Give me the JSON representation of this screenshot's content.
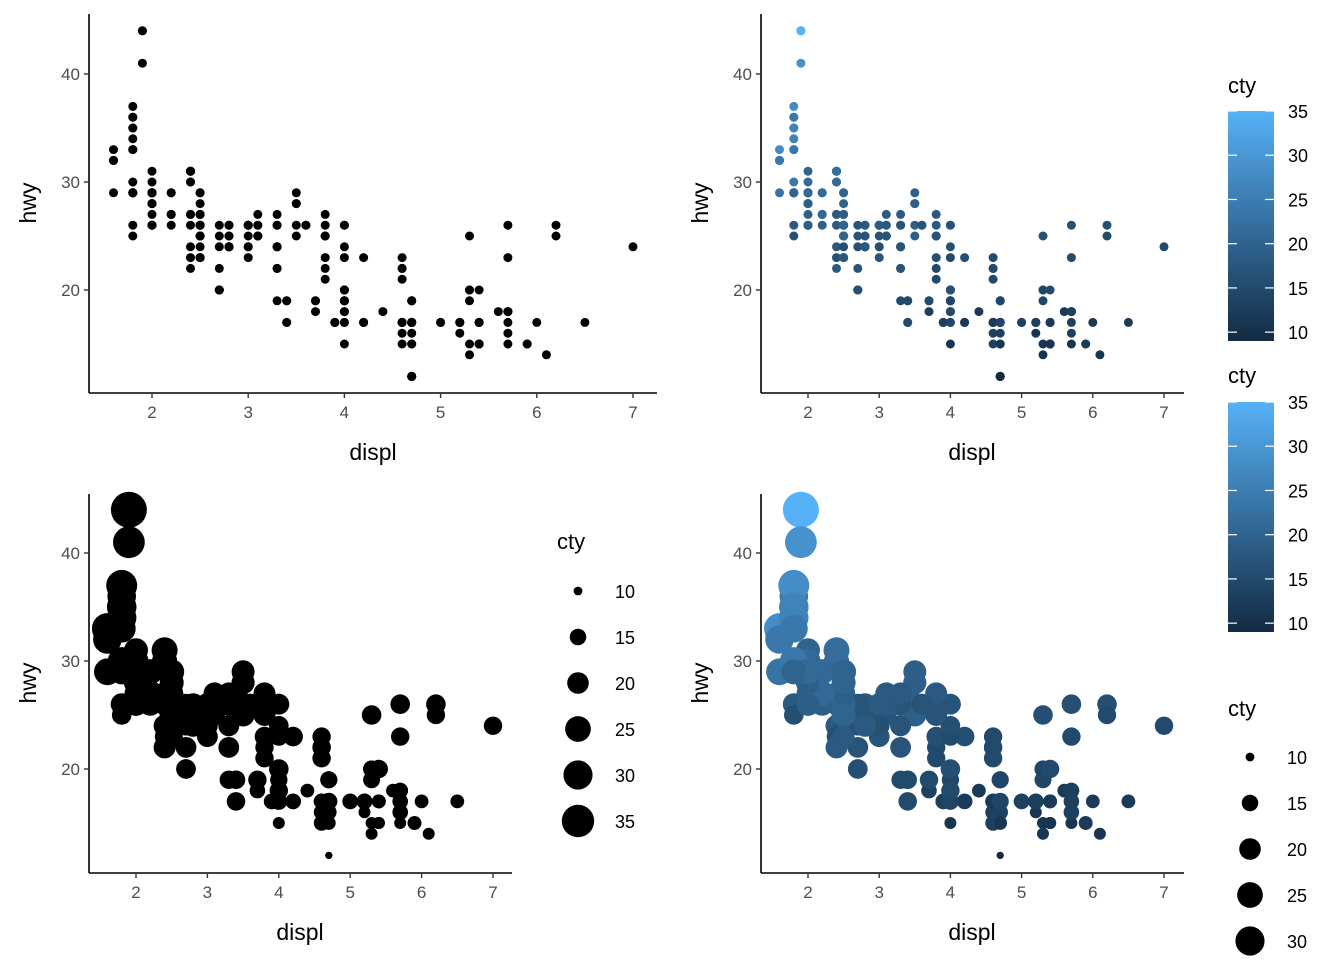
{
  "chart_data": [
    {
      "type": "scatter",
      "panel": "top-left",
      "title": "",
      "xlabel": "displ",
      "ylabel": "hwy",
      "xlim": [
        1.36,
        7.24
      ],
      "ylim": [
        10.4,
        45.6
      ],
      "xticks": [
        2,
        3,
        4,
        5,
        6,
        7
      ],
      "yticks": [
        20,
        30,
        40
      ],
      "xtick_labels": [
        "2",
        "3",
        "4",
        "5",
        "6",
        "7"
      ],
      "ytick_labels": [
        "20",
        "30",
        "40"
      ],
      "color_mapping": "none",
      "size_mapping": "none",
      "point_color": "#000000",
      "legend": null
    },
    {
      "type": "scatter",
      "panel": "top-right",
      "title": "",
      "xlabel": "displ",
      "ylabel": "hwy",
      "xlim": [
        1.36,
        7.24
      ],
      "ylim": [
        10.4,
        45.6
      ],
      "xticks": [
        2,
        3,
        4,
        5,
        6,
        7
      ],
      "yticks": [
        20,
        30,
        40
      ],
      "xtick_labels": [
        "2",
        "3",
        "4",
        "5",
        "6",
        "7"
      ],
      "ytick_labels": [
        "20",
        "30",
        "40"
      ],
      "color_mapping": "cty",
      "size_mapping": "none",
      "legend": {
        "title": "cty",
        "type": "colorbar",
        "placement": "right",
        "range": [
          9,
          35
        ],
        "breaks": [
          35,
          30,
          25,
          20,
          15,
          10
        ],
        "labels": [
          "35",
          "30",
          "25",
          "20",
          "15",
          "10"
        ],
        "low_color": "#132B43",
        "high_color": "#56B1F7"
      }
    },
    {
      "type": "scatter",
      "panel": "bottom-left",
      "title": "",
      "xlabel": "displ",
      "ylabel": "hwy",
      "xlim": [
        1.36,
        7.24
      ],
      "ylim": [
        10.4,
        45.6
      ],
      "xticks": [
        2,
        3,
        4,
        5,
        6,
        7
      ],
      "yticks": [
        20,
        30,
        40
      ],
      "xtick_labels": [
        "2",
        "3",
        "4",
        "5",
        "6",
        "7"
      ],
      "ytick_labels": [
        "20",
        "30",
        "40"
      ],
      "color_mapping": "none",
      "size_mapping": "cty",
      "point_color": "#000000",
      "legend": {
        "title": "cty",
        "type": "size",
        "placement": "right",
        "breaks": [
          10,
          15,
          20,
          25,
          30,
          35
        ],
        "labels": [
          "10",
          "15",
          "20",
          "25",
          "30",
          "35"
        ]
      }
    },
    {
      "type": "scatter",
      "panel": "bottom-right",
      "title": "",
      "xlabel": "displ",
      "ylabel": "hwy",
      "xlim": [
        1.36,
        7.24
      ],
      "ylim": [
        10.4,
        45.6
      ],
      "xticks": [
        2,
        3,
        4,
        5,
        6,
        7
      ],
      "yticks": [
        20,
        30,
        40
      ],
      "xtick_labels": [
        "2",
        "3",
        "4",
        "5",
        "6",
        "7"
      ],
      "ytick_labels": [
        "20",
        "30",
        "40"
      ],
      "color_mapping": "cty",
      "size_mapping": "cty",
      "legends": [
        {
          "title": "cty",
          "type": "colorbar",
          "placement": "right",
          "range": [
            9,
            35
          ],
          "breaks": [
            35,
            30,
            25,
            20,
            15,
            10
          ],
          "labels": [
            "35",
            "30",
            "25",
            "20",
            "15",
            "10"
          ],
          "low_color": "#132B43",
          "high_color": "#56B1F7"
        },
        {
          "title": "cty",
          "type": "size",
          "placement": "right",
          "breaks": [
            10,
            15,
            20,
            25,
            30
          ],
          "labels": [
            "10",
            "15",
            "20",
            "25",
            "30"
          ]
        }
      ]
    }
  ],
  "points": {
    "fields": [
      "displ",
      "hwy",
      "cty"
    ],
    "rows": [
      [
        1.8,
        29,
        18
      ],
      [
        1.8,
        29,
        21
      ],
      [
        2.0,
        31,
        20
      ],
      [
        2.0,
        30,
        21
      ],
      [
        2.8,
        26,
        16
      ],
      [
        2.8,
        26,
        18
      ],
      [
        3.1,
        27,
        18
      ],
      [
        1.8,
        26,
        18
      ],
      [
        1.8,
        25,
        16
      ],
      [
        2.0,
        28,
        20
      ],
      [
        2.0,
        27,
        19
      ],
      [
        2.8,
        25,
        15
      ],
      [
        2.8,
        25,
        17
      ],
      [
        3.1,
        25,
        17
      ],
      [
        3.1,
        25,
        15
      ],
      [
        2.8,
        24,
        15
      ],
      [
        3.1,
        25,
        17
      ],
      [
        4.2,
        23,
        16
      ],
      [
        5.3,
        20,
        14
      ],
      [
        5.3,
        15,
        11
      ],
      [
        5.3,
        20,
        14
      ],
      [
        5.7,
        17,
        13
      ],
      [
        6.0,
        17,
        12
      ],
      [
        5.7,
        26,
        16
      ],
      [
        5.7,
        23,
        15
      ],
      [
        6.2,
        26,
        16
      ],
      [
        6.2,
        25,
        15
      ],
      [
        7.0,
        24,
        15
      ],
      [
        5.3,
        19,
        14
      ],
      [
        5.3,
        14,
        11
      ],
      [
        5.7,
        15,
        11
      ],
      [
        6.5,
        17,
        12
      ],
      [
        2.4,
        27,
        18
      ],
      [
        2.4,
        30,
        21
      ],
      [
        3.1,
        26,
        19
      ],
      [
        3.5,
        29,
        19
      ],
      [
        3.6,
        26,
        17
      ],
      [
        2.4,
        24,
        18
      ],
      [
        3.0,
        24,
        17
      ],
      [
        3.3,
        22,
        16
      ],
      [
        3.3,
        24,
        16
      ],
      [
        3.3,
        24,
        17
      ],
      [
        3.3,
        22,
        17
      ],
      [
        3.3,
        19,
        15
      ],
      [
        3.8,
        22,
        15
      ],
      [
        3.8,
        21,
        15
      ],
      [
        3.8,
        23,
        16
      ],
      [
        4.0,
        23,
        15
      ],
      [
        3.7,
        19,
        14
      ],
      [
        3.7,
        18,
        13
      ],
      [
        3.9,
        17,
        13
      ],
      [
        3.9,
        17,
        13
      ],
      [
        4.7,
        19,
        14
      ],
      [
        4.7,
        19,
        14
      ],
      [
        4.7,
        12,
        9
      ],
      [
        5.2,
        17,
        13
      ],
      [
        5.2,
        17,
        13
      ],
      [
        3.9,
        17,
        13
      ],
      [
        4.7,
        17,
        13
      ],
      [
        4.7,
        12,
        9
      ],
      [
        4.7,
        17,
        13
      ],
      [
        5.2,
        16,
        11
      ],
      [
        5.7,
        18,
        13
      ],
      [
        5.9,
        15,
        12
      ],
      [
        4.7,
        17,
        12
      ],
      [
        4.7,
        12,
        9
      ],
      [
        4.7,
        17,
        13
      ],
      [
        4.7,
        17,
        13
      ],
      [
        4.7,
        12,
        9
      ],
      [
        5.2,
        17,
        13
      ],
      [
        5.2,
        17,
        13
      ],
      [
        5.7,
        16,
        13
      ],
      [
        5.9,
        15,
        12
      ],
      [
        4.6,
        17,
        12
      ],
      [
        5.4,
        15,
        11
      ],
      [
        5.4,
        17,
        12
      ],
      [
        4.0,
        17,
        13
      ],
      [
        4.0,
        19,
        14
      ],
      [
        4.0,
        19,
        14
      ],
      [
        4.0,
        19,
        14
      ],
      [
        4.6,
        17,
        13
      ],
      [
        5.0,
        17,
        13
      ],
      [
        4.2,
        17,
        13
      ],
      [
        4.2,
        17,
        13
      ],
      [
        4.6,
        17,
        13
      ],
      [
        4.6,
        16,
        13
      ],
      [
        4.6,
        17,
        13
      ],
      [
        5.4,
        15,
        11
      ],
      [
        5.4,
        17,
        12
      ],
      [
        3.8,
        26,
        18
      ],
      [
        3.8,
        25,
        18
      ],
      [
        4.0,
        26,
        17
      ],
      [
        4.0,
        24,
        16
      ],
      [
        4.6,
        21,
        15
      ],
      [
        4.6,
        22,
        15
      ],
      [
        4.6,
        23,
        15
      ],
      [
        4.6,
        22,
        15
      ],
      [
        5.4,
        20,
        15
      ],
      [
        1.6,
        33,
        28
      ],
      [
        1.6,
        32,
        24
      ],
      [
        1.6,
        32,
        25
      ],
      [
        1.6,
        29,
        23
      ],
      [
        1.6,
        32,
        24
      ],
      [
        1.8,
        34,
        26
      ],
      [
        1.8,
        36,
        25
      ],
      [
        1.8,
        36,
        24
      ],
      [
        2.0,
        29,
        21
      ],
      [
        2.4,
        26,
        18
      ],
      [
        2.4,
        27,
        18
      ],
      [
        2.4,
        30,
        21
      ],
      [
        2.4,
        31,
        21
      ],
      [
        2.5,
        26,
        18
      ],
      [
        2.5,
        26,
        18
      ],
      [
        3.3,
        26,
        19
      ],
      [
        2.0,
        28,
        19
      ],
      [
        2.0,
        26,
        19
      ],
      [
        2.0,
        29,
        20
      ],
      [
        2.0,
        28,
        20
      ],
      [
        2.7,
        26,
        17
      ],
      [
        2.7,
        24,
        16
      ],
      [
        2.7,
        25,
        17
      ],
      [
        3.0,
        25,
        17
      ],
      [
        3.7,
        19,
        15
      ],
      [
        4.0,
        20,
        15
      ],
      [
        4.7,
        17,
        14
      ],
      [
        4.7,
        12,
        9
      ],
      [
        4.7,
        19,
        14
      ],
      [
        5.7,
        18,
        13
      ],
      [
        6.1,
        14,
        11
      ],
      [
        4.0,
        15,
        11
      ],
      [
        4.2,
        17,
        12
      ],
      [
        4.4,
        18,
        12
      ],
      [
        4.6,
        17,
        12
      ],
      [
        5.4,
        15,
        11
      ],
      [
        5.4,
        17,
        12
      ],
      [
        5.4,
        15,
        11
      ],
      [
        4.0,
        19,
        14
      ],
      [
        4.0,
        20,
        15
      ],
      [
        4.0,
        17,
        14
      ],
      [
        4.7,
        16,
        13
      ],
      [
        4.7,
        17,
        13
      ],
      [
        4.7,
        15,
        12
      ],
      [
        5.4,
        15,
        11
      ],
      [
        5.4,
        17,
        12
      ],
      [
        4.0,
        18,
        14
      ],
      [
        4.0,
        20,
        15
      ],
      [
        4.6,
        15,
        13
      ],
      [
        5.0,
        17,
        13
      ],
      [
        2.4,
        23,
        16
      ],
      [
        2.4,
        22,
        18
      ],
      [
        2.5,
        23,
        17
      ],
      [
        2.5,
        24,
        16
      ],
      [
        3.5,
        26,
        19
      ],
      [
        3.5,
        25,
        19
      ],
      [
        3.0,
        23,
        17
      ],
      [
        3.0,
        24,
        16
      ],
      [
        3.5,
        28,
        19
      ],
      [
        3.3,
        24,
        17
      ],
      [
        3.3,
        26,
        17
      ],
      [
        4.0,
        26,
        17
      ],
      [
        5.6,
        18,
        12
      ],
      [
        3.1,
        26,
        18
      ],
      [
        3.8,
        25,
        16
      ],
      [
        3.8,
        25,
        17
      ],
      [
        3.8,
        27,
        18
      ],
      [
        5.3,
        25,
        16
      ],
      [
        2.5,
        27,
        19
      ],
      [
        2.5,
        25,
        19
      ],
      [
        2.5,
        26,
        20
      ],
      [
        2.5,
        26,
        20
      ],
      [
        2.5,
        27,
        19
      ],
      [
        2.5,
        25,
        20
      ],
      [
        2.2,
        26,
        19
      ],
      [
        2.2,
        27,
        20
      ],
      [
        2.5,
        25,
        19
      ],
      [
        2.5,
        26,
        20
      ],
      [
        2.5,
        25,
        18
      ],
      [
        2.5,
        23,
        18
      ],
      [
        2.5,
        26,
        20
      ],
      [
        2.5,
        25,
        20
      ],
      [
        2.5,
        27,
        19
      ],
      [
        2.5,
        25,
        20
      ],
      [
        2.7,
        20,
        15
      ],
      [
        2.7,
        20,
        16
      ],
      [
        3.4,
        19,
        15
      ],
      [
        3.4,
        17,
        15
      ],
      [
        4.0,
        20,
        15
      ],
      [
        4.7,
        17,
        14
      ],
      [
        2.2,
        29,
        21
      ],
      [
        2.2,
        27,
        21
      ],
      [
        2.4,
        31,
        21
      ],
      [
        2.4,
        31,
        21
      ],
      [
        3.0,
        26,
        18
      ],
      [
        3.0,
        26,
        18
      ],
      [
        3.5,
        28,
        19
      ],
      [
        2.2,
        27,
        21
      ],
      [
        2.2,
        29,
        21
      ],
      [
        2.4,
        31,
        21
      ],
      [
        2.4,
        31,
        22
      ],
      [
        3.0,
        26,
        18
      ],
      [
        3.0,
        26,
        18
      ],
      [
        3.3,
        27,
        18
      ],
      [
        1.8,
        30,
        24
      ],
      [
        1.8,
        33,
        24
      ],
      [
        1.8,
        35,
        26
      ],
      [
        1.8,
        37,
        28
      ],
      [
        1.8,
        35,
        26
      ],
      [
        4.7,
        15,
        11
      ],
      [
        5.7,
        18,
        13
      ],
      [
        2.7,
        20,
        15
      ],
      [
        2.7,
        20,
        16
      ],
      [
        2.7,
        22,
        17
      ],
      [
        3.4,
        17,
        15
      ],
      [
        3.4,
        19,
        15
      ],
      [
        4.0,
        18,
        15
      ],
      [
        4.0,
        20,
        16
      ],
      [
        2.0,
        29,
        21
      ],
      [
        2.0,
        26,
        19
      ],
      [
        2.0,
        29,
        21
      ],
      [
        2.0,
        29,
        22
      ],
      [
        2.8,
        24,
        17
      ],
      [
        1.9,
        44,
        33
      ],
      [
        2.0,
        29,
        21
      ],
      [
        2.0,
        26,
        19
      ],
      [
        2.0,
        29,
        22
      ],
      [
        2.0,
        29,
        21
      ],
      [
        2.5,
        29,
        21
      ],
      [
        2.5,
        23,
        18
      ],
      [
        2.8,
        24,
        16
      ],
      [
        1.9,
        44,
        35
      ],
      [
        1.9,
        41,
        29
      ],
      [
        2.0,
        29,
        21
      ],
      [
        2.0,
        26,
        19
      ],
      [
        2.5,
        28,
        20
      ],
      [
        2.5,
        29,
        20
      ],
      [
        1.8,
        29,
        21
      ],
      [
        1.8,
        29,
        18
      ],
      [
        2.0,
        28,
        19
      ],
      [
        2.0,
        29,
        21
      ],
      [
        2.8,
        24,
        16
      ],
      [
        2.8,
        24,
        18
      ],
      [
        3.6,
        26,
        17
      ],
      [
        1.8,
        29,
        20
      ],
      [
        1.8,
        33,
        24
      ]
    ]
  }
}
